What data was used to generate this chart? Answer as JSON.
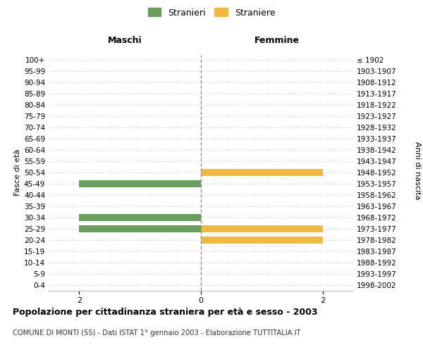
{
  "age_groups": [
    "0-4",
    "5-9",
    "10-14",
    "15-19",
    "20-24",
    "25-29",
    "30-34",
    "35-39",
    "40-44",
    "45-49",
    "50-54",
    "55-59",
    "60-64",
    "65-69",
    "70-74",
    "75-79",
    "80-84",
    "85-89",
    "90-94",
    "95-99",
    "100+"
  ],
  "birth_years": [
    "1998-2002",
    "1993-1997",
    "1988-1992",
    "1983-1987",
    "1978-1982",
    "1973-1977",
    "1968-1972",
    "1963-1967",
    "1958-1962",
    "1953-1957",
    "1948-1952",
    "1943-1947",
    "1938-1942",
    "1933-1937",
    "1928-1932",
    "1923-1927",
    "1918-1922",
    "1913-1917",
    "1908-1912",
    "1903-1907",
    "≤ 1902"
  ],
  "maschi": [
    0,
    0,
    0,
    0,
    0,
    2,
    2,
    0,
    0,
    2,
    0,
    0,
    0,
    0,
    0,
    0,
    0,
    0,
    0,
    0,
    0
  ],
  "femmine": [
    0,
    0,
    0,
    0,
    2,
    2,
    0,
    0,
    0,
    0,
    2,
    0,
    0,
    0,
    0,
    0,
    0,
    0,
    0,
    0,
    0
  ],
  "color_maschi": "#6a9e5e",
  "color_femmine": "#f0b942",
  "title": "Popolazione per cittadinanza straniera per età e sesso - 2003",
  "subtitle": "COMUNE DI MONTI (SS) - Dati ISTAT 1° gennaio 2003 - Elaborazione TUTTITALIA.IT",
  "ylabel_left": "Fasce di età",
  "ylabel_right": "Anni di nascita",
  "xlabel_left": "Maschi",
  "xlabel_right": "Femmine",
  "legend_stranieri": "Stranieri",
  "legend_straniere": "Straniere",
  "xlim": 2.5,
  "background_color": "#ffffff",
  "grid_color": "#cccccc"
}
